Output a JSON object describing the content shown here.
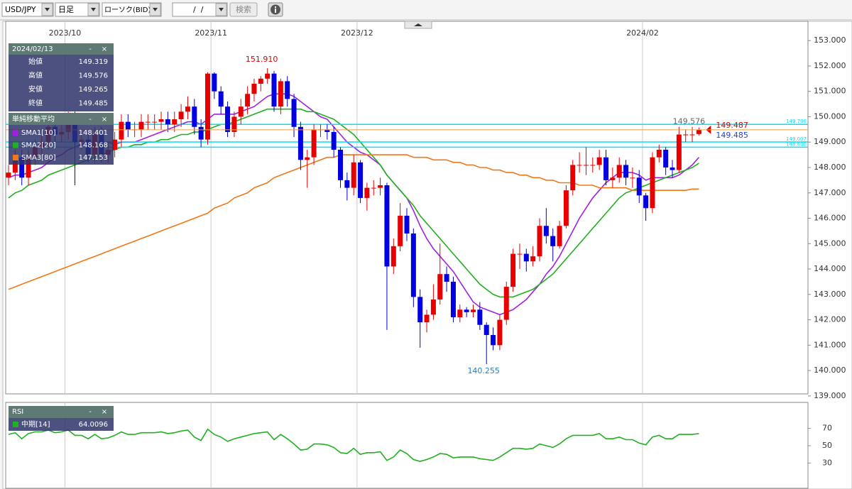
{
  "toolbar": {
    "symbol": "USD/JPY",
    "period": "日足",
    "chart_type": "ローソク(BID)",
    "date": "/  /",
    "search": "検索"
  },
  "window_buttons": [
    "-",
    "×"
  ],
  "chart_data": [
    {
      "type": "candlestick",
      "categories": [
        null,
        null,
        null,
        null,
        null,
        null,
        null,
        null,
        null,
        "2023/10",
        null,
        null,
        null,
        null,
        null,
        null,
        null,
        null,
        null,
        null,
        null,
        null,
        null,
        null,
        null,
        null,
        null,
        null,
        null,
        null,
        null,
        "2023/11",
        null,
        null,
        null,
        null,
        null,
        null,
        null,
        null,
        null,
        null,
        null,
        null,
        null,
        null,
        null,
        null,
        null,
        null,
        null,
        null,
        null,
        "2023/12",
        null,
        null,
        null,
        null,
        null,
        null,
        null,
        null,
        null,
        null,
        null,
        null,
        null,
        null,
        null,
        null,
        null,
        null,
        null,
        null,
        null,
        null,
        null,
        null,
        null,
        null,
        null,
        null,
        null,
        null,
        null,
        null,
        null,
        null,
        null,
        null,
        null,
        null,
        null,
        null,
        null,
        null,
        "2024/02",
        null,
        null,
        null,
        null,
        null,
        null,
        null,
        null
      ],
      "open": [
        147.6,
        147.8,
        148.4,
        147.6,
        148.4,
        148.8,
        149.0,
        149.6,
        149.3,
        149.4,
        149.9,
        149.0,
        149.1,
        148.5,
        149.3,
        148.5,
        148.7,
        149.1,
        149.8,
        149.5,
        149.5,
        149.8,
        149.8,
        149.8,
        149.9,
        149.7,
        149.9,
        150.2,
        150.4,
        149.6,
        149.1,
        151.7,
        151.0,
        150.4,
        149.4,
        150.0,
        150.4,
        150.9,
        151.3,
        151.5,
        151.7,
        150.4,
        151.4,
        150.7,
        149.6,
        148.3,
        148.4,
        149.5,
        149.5,
        149.4,
        148.7,
        147.5,
        147.2,
        148.2,
        146.8,
        147.2,
        147.2,
        147.3,
        144.1,
        144.9,
        146.1,
        145.4,
        142.9,
        141.9,
        142.2,
        142.8,
        143.8,
        143.5,
        142.1,
        142.4,
        142.3,
        142.4,
        141.8,
        141.4,
        141.0,
        142.0,
        143.3,
        144.6,
        144.6,
        144.3,
        144.5,
        145.7,
        145.3,
        144.9,
        145.7,
        147.1,
        148.1,
        148.1,
        148.1,
        148.1,
        148.4,
        147.5,
        147.6,
        148.1,
        147.6,
        147.6,
        146.9,
        146.4,
        148.4,
        148.7,
        148.0,
        147.9,
        149.3,
        149.3,
        149.319
      ],
      "high": [
        148.1,
        148.7,
        148.7,
        148.7,
        149.1,
        149.3,
        149.9,
        149.9,
        149.7,
        150.2,
        150.2,
        149.4,
        149.4,
        149.6,
        149.6,
        149.0,
        149.4,
        150.1,
        150.1,
        149.8,
        150.1,
        150.1,
        150.1,
        150.2,
        150.2,
        150.2,
        150.5,
        150.8,
        150.7,
        149.9,
        151.75,
        151.75,
        151.2,
        150.6,
        150.2,
        150.7,
        151.2,
        151.5,
        151.6,
        151.91,
        151.8,
        151.5,
        151.6,
        150.9,
        149.8,
        148.7,
        149.7,
        149.7,
        149.7,
        149.6,
        148.8,
        147.8,
        148.5,
        148.3,
        147.4,
        147.5,
        147.6,
        147.4,
        145.2,
        146.6,
        146.4,
        145.6,
        143.2,
        142.4,
        143.4,
        145.0,
        144.1,
        143.7,
        142.6,
        142.5,
        142.6,
        142.7,
        141.9,
        141.7,
        142.2,
        143.5,
        144.8,
        145.0,
        144.8,
        144.9,
        146.0,
        146.4,
        145.6,
        145.9,
        147.3,
        148.3,
        148.6,
        148.8,
        148.4,
        148.7,
        148.7,
        148.0,
        148.4,
        148.3,
        148.0,
        147.9,
        147.0,
        148.6,
        148.9,
        148.8,
        148.3,
        149.6,
        149.5,
        149.6,
        149.576
      ],
      "low": [
        147.3,
        147.5,
        147.3,
        147.3,
        148.1,
        148.5,
        148.7,
        149.0,
        149.0,
        149.1,
        147.3,
        148.7,
        148.2,
        148.2,
        148.2,
        148.2,
        148.4,
        148.8,
        149.2,
        149.2,
        149.2,
        149.5,
        149.5,
        149.5,
        149.4,
        149.4,
        149.6,
        149.9,
        149.3,
        148.8,
        148.9,
        150.7,
        150.1,
        149.2,
        149.2,
        149.7,
        150.1,
        150.6,
        151.0,
        151.3,
        150.2,
        150.1,
        150.4,
        149.2,
        147.9,
        147.2,
        148.1,
        149.2,
        149.1,
        148.4,
        147.2,
        146.7,
        146.9,
        146.6,
        146.3,
        146.9,
        146.9,
        141.6,
        143.8,
        144.7,
        145.1,
        142.5,
        140.9,
        141.5,
        142.0,
        142.6,
        143.1,
        141.9,
        141.9,
        142.1,
        142.1,
        141.6,
        140.255,
        140.8,
        140.8,
        141.8,
        143.1,
        144.0,
        143.9,
        144.1,
        144.3,
        145.0,
        144.3,
        144.8,
        145.6,
        146.9,
        147.8,
        147.7,
        147.8,
        147.9,
        147.3,
        147.2,
        147.4,
        147.3,
        147.2,
        146.6,
        145.9,
        146.2,
        148.2,
        147.7,
        147.6,
        147.8,
        149.0,
        149.0,
        149.265
      ],
      "close": [
        147.8,
        148.4,
        147.6,
        148.4,
        148.8,
        149.0,
        149.6,
        149.3,
        149.4,
        149.9,
        149.0,
        149.1,
        148.5,
        149.3,
        148.5,
        148.7,
        149.1,
        149.8,
        149.5,
        149.5,
        149.8,
        149.8,
        149.8,
        149.9,
        149.7,
        149.9,
        150.2,
        150.4,
        149.6,
        149.1,
        151.7,
        151.0,
        150.4,
        149.4,
        150.0,
        150.4,
        150.9,
        151.3,
        151.5,
        151.7,
        150.4,
        151.4,
        150.7,
        149.6,
        148.3,
        148.4,
        149.5,
        149.5,
        149.4,
        148.7,
        147.5,
        147.2,
        148.2,
        146.8,
        147.2,
        147.2,
        147.3,
        144.1,
        144.9,
        146.1,
        145.4,
        142.9,
        141.9,
        142.2,
        142.8,
        143.8,
        143.5,
        142.1,
        142.4,
        142.3,
        142.4,
        141.8,
        141.4,
        141.0,
        142.0,
        143.3,
        144.6,
        144.6,
        144.3,
        144.5,
        145.7,
        145.3,
        144.9,
        145.7,
        147.1,
        148.1,
        148.1,
        148.1,
        148.1,
        148.4,
        147.5,
        147.6,
        148.1,
        147.6,
        147.6,
        146.9,
        146.4,
        148.4,
        148.7,
        148.0,
        147.9,
        149.3,
        149.3,
        149.3,
        149.485
      ],
      "up_color": "#e60000",
      "down_color": "#0000e0",
      "series": [
        {
          "name": "SMA1[10]",
          "color": "#a020e0",
          "last_label": "148.401",
          "values": [
            147.6,
            147.7,
            147.7,
            147.8,
            147.9,
            148.0,
            148.2,
            148.4,
            148.5,
            148.7,
            148.8,
            148.9,
            149.0,
            149.0,
            149.0,
            149.0,
            148.9,
            149.0,
            149.0,
            149.0,
            149.1,
            149.2,
            149.3,
            149.4,
            149.5,
            149.6,
            149.7,
            149.8,
            149.8,
            149.7,
            149.9,
            150.1,
            150.1,
            150.1,
            150.1,
            150.2,
            150.3,
            150.4,
            150.6,
            150.8,
            150.9,
            150.9,
            150.9,
            150.8,
            150.6,
            150.4,
            150.2,
            150.0,
            149.9,
            149.6,
            149.3,
            149.0,
            148.8,
            148.6,
            148.5,
            148.3,
            148.1,
            147.7,
            147.4,
            147.1,
            146.8,
            146.3,
            145.7,
            145.2,
            144.8,
            144.5,
            144.2,
            143.9,
            143.5,
            143.1,
            142.7,
            142.5,
            142.4,
            142.3,
            142.2,
            142.3,
            142.4,
            142.6,
            142.8,
            143.1,
            143.4,
            143.8,
            144.1,
            144.5,
            145.0,
            145.5,
            146.0,
            146.4,
            146.8,
            147.1,
            147.4,
            147.6,
            147.8,
            147.8,
            147.8,
            147.7,
            147.5,
            147.6,
            147.6,
            147.6,
            147.6,
            147.7,
            147.9,
            148.1,
            148.401
          ]
        },
        {
          "name": "SMA2[20]",
          "color": "#20b020",
          "last_label": "148.168",
          "values": [
            146.8,
            147.0,
            147.1,
            147.3,
            147.4,
            147.5,
            147.7,
            147.8,
            147.9,
            148.0,
            148.1,
            148.2,
            148.3,
            148.4,
            148.5,
            148.6,
            148.7,
            148.8,
            148.8,
            148.9,
            148.9,
            149.0,
            149.0,
            149.1,
            149.1,
            149.2,
            149.3,
            149.3,
            149.4,
            149.4,
            149.5,
            149.6,
            149.7,
            149.7,
            149.8,
            149.9,
            150.0,
            150.1,
            150.2,
            150.3,
            150.3,
            150.3,
            150.3,
            150.3,
            150.3,
            150.2,
            150.2,
            150.1,
            150.0,
            149.9,
            149.7,
            149.5,
            149.3,
            149.0,
            148.7,
            148.4,
            148.1,
            147.7,
            147.4,
            147.1,
            146.8,
            146.5,
            146.1,
            145.8,
            145.5,
            145.2,
            144.9,
            144.6,
            144.3,
            144.0,
            143.7,
            143.4,
            143.2,
            143.0,
            142.9,
            142.9,
            142.9,
            143.0,
            143.1,
            143.2,
            143.4,
            143.6,
            143.8,
            144.1,
            144.4,
            144.7,
            145.0,
            145.3,
            145.6,
            145.9,
            146.2,
            146.5,
            146.8,
            147.0,
            147.1,
            147.2,
            147.3,
            147.4,
            147.5,
            147.6,
            147.7,
            147.8,
            147.9,
            148.0,
            148.168
          ]
        },
        {
          "name": "SMA3[80]",
          "color": "#f07818",
          "last_label": "147.153",
          "values": [
            143.2,
            143.3,
            143.4,
            143.5,
            143.6,
            143.7,
            143.8,
            143.9,
            144.0,
            144.1,
            144.2,
            144.3,
            144.4,
            144.5,
            144.6,
            144.7,
            144.8,
            144.9,
            145.0,
            145.1,
            145.2,
            145.3,
            145.4,
            145.5,
            145.6,
            145.7,
            145.8,
            145.9,
            146.0,
            146.1,
            146.2,
            146.4,
            146.5,
            146.6,
            146.8,
            146.9,
            147.0,
            147.2,
            147.3,
            147.4,
            147.6,
            147.7,
            147.8,
            147.9,
            148.0,
            148.1,
            148.2,
            148.3,
            148.4,
            148.4,
            148.5,
            148.5,
            148.5,
            148.5,
            148.5,
            148.5,
            148.5,
            148.5,
            148.5,
            148.5,
            148.5,
            148.4,
            148.4,
            148.4,
            148.3,
            148.3,
            148.3,
            148.2,
            148.2,
            148.1,
            148.1,
            148.0,
            148.0,
            147.9,
            147.9,
            147.8,
            147.8,
            147.7,
            147.7,
            147.6,
            147.6,
            147.5,
            147.5,
            147.4,
            147.4,
            147.4,
            147.3,
            147.3,
            147.3,
            147.2,
            147.2,
            147.2,
            147.2,
            147.2,
            147.1,
            147.1,
            147.1,
            147.1,
            147.1,
            147.1,
            147.1,
            147.1,
            147.1,
            147.15,
            147.153
          ]
        }
      ],
      "ohlc_box": {
        "title": "2024/02/13",
        "rows": [
          {
            "label": "始値",
            "value": "149.319"
          },
          {
            "label": "高値",
            "value": "149.576"
          },
          {
            "label": "安値",
            "value": "149.265"
          },
          {
            "label": "終値",
            "value": "149.485"
          }
        ]
      },
      "sma_box_title": "単純移動平均",
      "ref_lines": [
        {
          "value": 149.7,
          "label": "149.700"
        },
        {
          "value": 149.007,
          "label": "149.007"
        },
        {
          "value": 148.8,
          "label": "148.800"
        }
      ],
      "ref_color": "#00e0ff",
      "price_labels": [
        {
          "value": 149.487,
          "label": "149.487",
          "color": "#e00000"
        },
        {
          "value": 149.485,
          "label": "149.485",
          "color": "#2040e0"
        }
      ],
      "price_line_color": "#f0a040",
      "max_label": "151.910",
      "min_label": "140.255",
      "last_high_label": "149.576",
      "ylim": [
        139.08,
        153.76
      ],
      "yticks": [
        {
          "value": 139,
          "label": "139.000"
        },
        {
          "value": 140,
          "label": "140.000"
        },
        {
          "value": 141,
          "label": "141.000"
        },
        {
          "value": 142,
          "label": "142.000"
        },
        {
          "value": 143,
          "label": "143.000"
        },
        {
          "value": 144,
          "label": "144.000"
        },
        {
          "value": 145,
          "label": "145.000"
        },
        {
          "value": 146,
          "label": "146.000"
        },
        {
          "value": 147,
          "label": "147.000"
        },
        {
          "value": 148,
          "label": "148.000"
        },
        {
          "value": 149,
          "label": "149.000"
        },
        {
          "value": 150,
          "label": "150.000"
        },
        {
          "value": 151,
          "label": "151.000"
        },
        {
          "value": 152,
          "label": "152.000"
        },
        {
          "value": 153,
          "label": "153.000"
        }
      ]
    },
    {
      "type": "line",
      "box_title": "RSI",
      "series": [
        {
          "name": "中期[14]",
          "color": "#20b020",
          "last_label": "64.0096",
          "values": [
            63,
            65,
            58,
            64,
            66,
            66,
            68,
            65,
            66,
            68,
            62,
            62,
            58,
            63,
            58,
            59,
            62,
            66,
            63,
            63,
            65,
            65,
            65,
            66,
            64,
            65,
            67,
            68,
            60,
            56,
            69,
            63,
            60,
            55,
            58,
            60,
            62,
            64,
            65,
            66,
            57,
            63,
            58,
            52,
            45,
            46,
            52,
            52,
            51,
            48,
            42,
            41,
            47,
            40,
            42,
            42,
            43,
            33,
            37,
            45,
            41,
            34,
            32,
            34,
            37,
            41,
            40,
            36,
            37,
            37,
            37,
            35,
            34,
            33,
            37,
            42,
            47,
            47,
            46,
            47,
            52,
            50,
            48,
            52,
            58,
            62,
            62,
            62,
            62,
            64,
            58,
            58,
            60,
            57,
            57,
            53,
            51,
            60,
            62,
            58,
            58,
            63,
            63,
            63,
            64.0096
          ]
        }
      ],
      "ylim": [
        0,
        100
      ],
      "yticks": [
        30,
        50,
        70
      ]
    }
  ]
}
